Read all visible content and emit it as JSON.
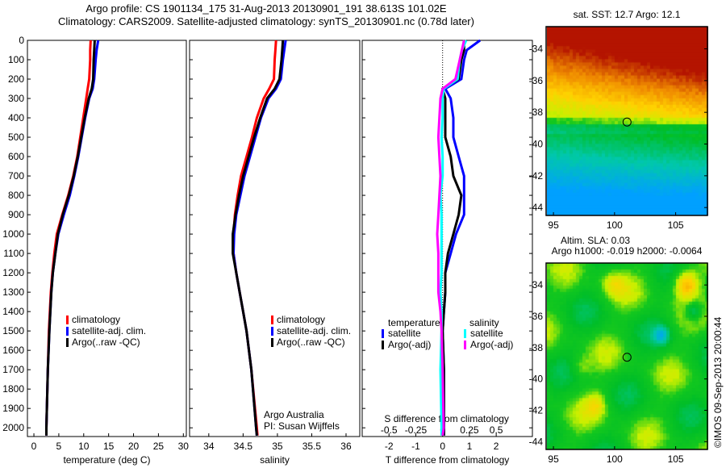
{
  "header": {
    "line1": "Argo profile: CS 1901134_175 31-Aug-2013 20130901_191 38.613S 101.02E",
    "line2": "Climatology: CARS2009. Satellite-adjusted climatology: synTS_20130901.nc (0.78d later)"
  },
  "credit": "©IMOS 09-Sep-2013 20:00:44",
  "colors": {
    "climatology": "#ff0000",
    "satellite": "#0000ff",
    "argo": "#000000",
    "sal_satellite": "#00ffff",
    "sal_argo": "#ff00ff"
  },
  "chart_data": [
    {
      "type": "line",
      "id": "temperature",
      "xlabel": "temperature (deg C)",
      "ylabel": "",
      "xlim": [
        -1.3,
        30.6
      ],
      "ylim": [
        2045,
        0
      ],
      "xticks": [
        0,
        5,
        10,
        15,
        20,
        25,
        30
      ],
      "yticks": [
        0,
        100,
        200,
        300,
        400,
        500,
        600,
        700,
        800,
        900,
        1000,
        1100,
        1200,
        1300,
        1400,
        1500,
        1600,
        1700,
        1800,
        1900,
        2000
      ],
      "legend": [
        "climatology",
        "satellite-adj. clim.",
        "Argo(..raw -QC)"
      ],
      "depth": [
        0,
        50,
        100,
        200,
        250,
        300,
        400,
        500,
        600,
        700,
        800,
        900,
        1000,
        1100,
        1200,
        1300,
        1400,
        1500,
        1700,
        2000,
        2040
      ],
      "series": [
        {
          "name": "climatology",
          "values": [
            11.4,
            11.3,
            11.3,
            11.1,
            10.8,
            10.5,
            9.9,
            9.3,
            8.7,
            7.9,
            6.9,
            5.7,
            4.6,
            4.1,
            3.7,
            3.4,
            3.2,
            3.0,
            2.8,
            2.5,
            2.5
          ]
        },
        {
          "name": "satellite-adj. clim.",
          "values": [
            12.9,
            12.6,
            12.4,
            12.1,
            11.8,
            11.1,
            10.3,
            9.6,
            8.9,
            8.1,
            7.2,
            6.0,
            4.9,
            4.3,
            3.8,
            3.5,
            3.3,
            3.1,
            2.8,
            2.5,
            2.5
          ]
        },
        {
          "name": "Argo(..raw -QC)",
          "values": [
            12.2,
            12.1,
            12.0,
            11.9,
            11.6,
            11.0,
            10.2,
            9.5,
            8.8,
            8.0,
            7.0,
            5.8,
            4.8,
            4.3,
            3.8,
            3.5,
            3.3,
            3.1,
            2.8,
            2.5,
            2.5
          ]
        }
      ]
    },
    {
      "type": "line",
      "id": "salinity",
      "xlabel": "salinity",
      "xlim": [
        33.72,
        36.2
      ],
      "ylim": [
        2045,
        0
      ],
      "xticks": [
        34,
        34.5,
        35,
        35.5,
        36
      ],
      "legend": [
        "climatology",
        "satellite-adj. clim.",
        "Argo(..raw -QC)"
      ],
      "annotation": [
        "Argo Australia",
        "PI: Susan Wijffels"
      ],
      "depth": [
        0,
        50,
        100,
        200,
        250,
        300,
        400,
        500,
        600,
        700,
        800,
        900,
        1000,
        1100,
        1200,
        1300,
        1400,
        1500,
        1700,
        2000,
        2040
      ],
      "series": [
        {
          "name": "climatology",
          "values": [
            34.98,
            34.97,
            34.96,
            34.95,
            34.88,
            34.8,
            34.7,
            34.63,
            34.55,
            34.47,
            34.42,
            34.38,
            34.36,
            34.36,
            34.4,
            34.45,
            34.5,
            34.55,
            34.62,
            34.7,
            34.71
          ]
        },
        {
          "name": "satellite-adj. clim.",
          "values": [
            35.12,
            35.1,
            35.08,
            35.05,
            34.98,
            34.87,
            34.76,
            34.68,
            34.6,
            34.52,
            34.46,
            34.4,
            34.37,
            34.36,
            34.4,
            34.45,
            34.5,
            34.55,
            34.62,
            34.69,
            34.7
          ]
        },
        {
          "name": "Argo(..raw -QC)",
          "values": [
            35.08,
            35.07,
            35.06,
            35.03,
            34.96,
            34.85,
            34.75,
            34.66,
            34.58,
            34.5,
            34.44,
            34.39,
            34.35,
            34.35,
            34.4,
            34.45,
            34.5,
            34.55,
            34.62,
            34.69,
            34.7
          ]
        }
      ]
    },
    {
      "type": "line",
      "id": "difference",
      "xlabel": "T difference from climatology",
      "x2label": "S difference from climatology",
      "xlim": [
        -3,
        3.35
      ],
      "ylim": [
        2045,
        0
      ],
      "xticks": [
        -2,
        -1,
        0,
        1,
        2
      ],
      "x2ticks": [
        -0.5,
        -0.25,
        0,
        0.25,
        0.5
      ],
      "x2_scale": 4,
      "legend_titles": [
        "temperature",
        "salinity"
      ],
      "legend": [
        "satellite",
        "Argo(-adj)",
        "satellite",
        "Argo(-adj)"
      ],
      "depth": [
        0,
        50,
        100,
        200,
        250,
        300,
        400,
        500,
        600,
        700,
        800,
        900,
        1000,
        1100,
        1200,
        1300,
        1400,
        1500,
        1700,
        2000,
        2040
      ],
      "series": [
        {
          "name": "T satellite",
          "values": [
            1.4,
            0.9,
            0.8,
            0.7,
            0.1,
            0.3,
            0.4,
            0.4,
            0.6,
            0.8,
            0.8,
            0.8,
            0.5,
            0.3,
            0.1,
            0.1,
            0.05,
            0.0,
            0.05,
            0.05,
            0.05
          ]
        },
        {
          "name": "T Argo(-adj)",
          "values": [
            0.8,
            0.8,
            0.7,
            0.6,
            0.0,
            0.1,
            0.1,
            0.1,
            0.3,
            0.4,
            0.7,
            0.6,
            0.4,
            0.2,
            0.1,
            0.1,
            0.05,
            0.0,
            0.05,
            0.05,
            0.05
          ]
        },
        {
          "name": "S satellite",
          "values": [
            0.22,
            0.18,
            0.16,
            0.14,
            0.01,
            0.0,
            0.0,
            -0.01,
            0.0,
            0.0,
            -0.02,
            -0.01,
            -0.01,
            -0.01,
            -0.01,
            -0.02,
            -0.01,
            -0.01,
            -0.02,
            -0.01,
            -0.01
          ]
        },
        {
          "name": "S Argo(-adj)",
          "values": [
            0.2,
            0.18,
            0.16,
            0.12,
            0.0,
            -0.02,
            -0.03,
            -0.04,
            -0.03,
            -0.02,
            -0.03,
            -0.04,
            -0.05,
            -0.04,
            -0.04,
            -0.04,
            -0.02,
            -0.01,
            0.0,
            0.01,
            0.0
          ]
        }
      ]
    },
    {
      "type": "heatmap",
      "id": "sst-map",
      "title": "sat. SST: 12.7 Argo: 12.1",
      "xlim": [
        94.4,
        107.6
      ],
      "ylim": [
        -44.5,
        -32.6
      ],
      "xticks": [
        95,
        100,
        105
      ],
      "yticks": [
        -34,
        -36,
        -38,
        -40,
        -42,
        -44
      ],
      "marker": [
        101.02,
        -38.613
      ]
    },
    {
      "type": "heatmap",
      "id": "sla-map",
      "title": "Altim. SLA: 0.03",
      "subtitle": "Argo h1000: -0.019 h2000: -0.0064",
      "xlim": [
        94.4,
        107.6
      ],
      "ylim": [
        -44.5,
        -32.6
      ],
      "xticks": [
        95,
        100,
        105
      ],
      "yticks": [
        -34,
        -36,
        -38,
        -40,
        -42,
        -44
      ],
      "marker": [
        101.02,
        -38.613
      ]
    }
  ]
}
